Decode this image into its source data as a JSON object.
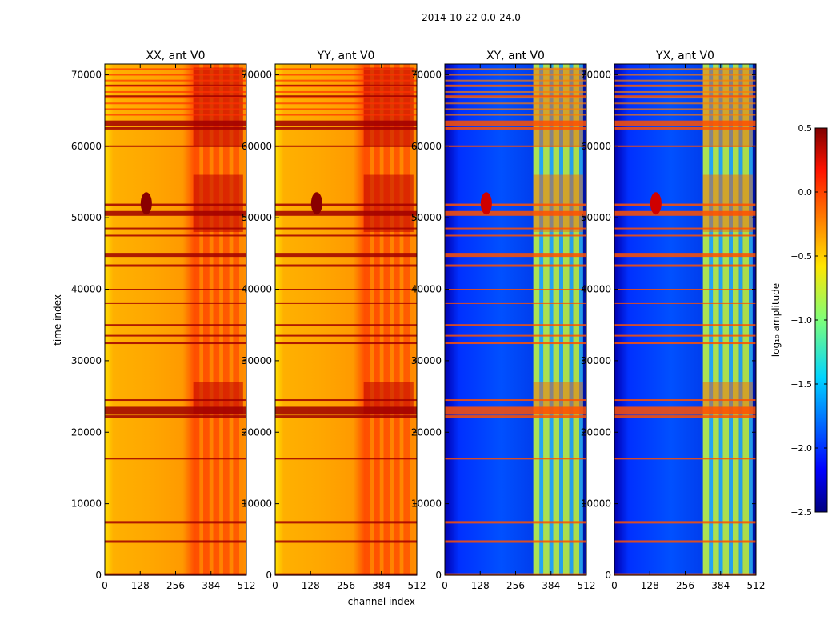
{
  "suptitle": "2014-10-22 0.0-24.0",
  "chart_data": [
    {
      "type": "heatmap",
      "title": "XX, ant V0",
      "colormap": "hot",
      "xlabel": "",
      "ylabel": "time index",
      "xlim": [
        0,
        512
      ],
      "ylim": [
        0,
        71500
      ],
      "xticks": [
        "0",
        "128",
        "256",
        "384",
        "512"
      ],
      "yticks": [
        "0",
        "10000",
        "20000",
        "30000",
        "40000",
        "50000",
        "60000",
        "70000"
      ],
      "approx_log10_amplitude": {
        "background": -0.2,
        "band_320_510": 0.1,
        "flagged_rows": 0.5
      }
    },
    {
      "type": "heatmap",
      "title": "YY, ant V0",
      "colormap": "hot",
      "xlabel": "channel index",
      "ylabel": "",
      "xlim": [
        0,
        512
      ],
      "ylim": [
        0,
        71500
      ],
      "xticks": [
        "0",
        "128",
        "256",
        "384",
        "512"
      ],
      "yticks": [
        "0",
        "10000",
        "20000",
        "30000",
        "40000",
        "50000",
        "60000",
        "70000"
      ],
      "approx_log10_amplitude": {
        "background": -0.3,
        "band_320_510": 0.0,
        "flagged_rows": 0.5
      }
    },
    {
      "type": "heatmap",
      "title": "XY, ant V0",
      "colormap": "jet",
      "xlabel": "",
      "ylabel": "",
      "xlim": [
        0,
        512
      ],
      "ylim": [
        0,
        71500
      ],
      "xticks": [
        "0",
        "128",
        "256",
        "384",
        "512"
      ],
      "yticks": [
        "0",
        "10000",
        "20000",
        "30000",
        "40000",
        "50000",
        "60000",
        "70000"
      ],
      "approx_log10_amplitude": {
        "background": -2.0,
        "band_320_510": -0.9,
        "flagged_rows": -0.2
      }
    },
    {
      "type": "heatmap",
      "title": "YX, ant V0",
      "colormap": "jet",
      "xlabel": "",
      "ylabel": "",
      "xlim": [
        0,
        512
      ],
      "ylim": [
        0,
        71500
      ],
      "xticks": [
        "0",
        "128",
        "256",
        "384",
        "512"
      ],
      "yticks": [
        "0",
        "10000",
        "20000",
        "30000",
        "40000",
        "50000",
        "60000",
        "70000"
      ],
      "approx_log10_amplitude": {
        "background": -2.0,
        "band_320_510": -0.9,
        "flagged_rows": -0.2
      }
    }
  ],
  "colorbar": {
    "label": "log₁₀ amplitude",
    "range": [
      -2.5,
      0.5
    ],
    "ticks": [
      "0.5",
      "0.0",
      "−0.5",
      "−1.0",
      "−1.5",
      "−2.0",
      "−2.5"
    ],
    "colormap": "jet"
  }
}
